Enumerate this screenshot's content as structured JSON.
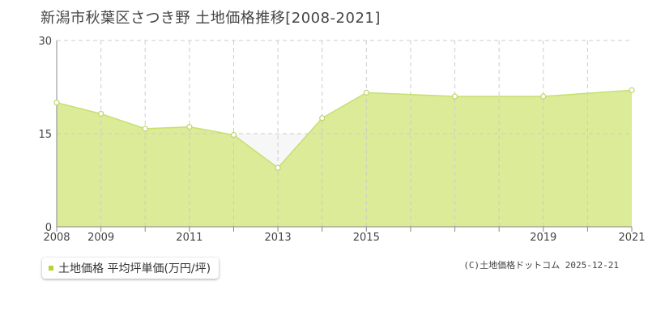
{
  "title": "新潟市秋葉区さつき野 土地価格推移[2008-2021]",
  "chart_data": {
    "type": "area",
    "title": "新潟市秋葉区さつき野 土地価格推移[2008-2021]",
    "x": [
      2008,
      2009,
      2010,
      2011,
      2012,
      2013,
      2014,
      2015,
      2016,
      2017,
      2018,
      2019,
      2020,
      2021
    ],
    "x_tick_labels": [
      "2008",
      "2009",
      "2011",
      "2013",
      "2015",
      "2019",
      "2021"
    ],
    "x_tick_values": [
      2008,
      2009,
      2011,
      2013,
      2015,
      2019,
      2021
    ],
    "xlim": [
      2008,
      2021
    ],
    "ylim": [
      0,
      30
    ],
    "y_tick_labels": [
      "0",
      "15",
      "30"
    ],
    "y_tick_values": [
      0,
      15,
      30
    ],
    "grid": true,
    "legend_position": "bottom-left",
    "series": [
      {
        "name": "土地価格 平均坪単価(万円/坪)",
        "values": [
          20.0,
          18.2,
          15.8,
          16.1,
          14.8,
          9.5,
          17.5,
          21.6,
          null,
          21.0,
          null,
          21.0,
          null,
          22.0
        ]
      }
    ]
  },
  "legend": {
    "label": "土地価格 平均坪単価(万円/坪)"
  },
  "credit": "(C)土地価格ドットコム 2025-12-21",
  "colors": {
    "area_fill": "#dbeb98",
    "line": "#c6e070",
    "marker_fill": "#ffffff",
    "marker_stroke": "#bcd66a",
    "grid": "#cccccc",
    "baseline_fill": "#f7f7f7",
    "legend_swatch": "#b5d334"
  }
}
